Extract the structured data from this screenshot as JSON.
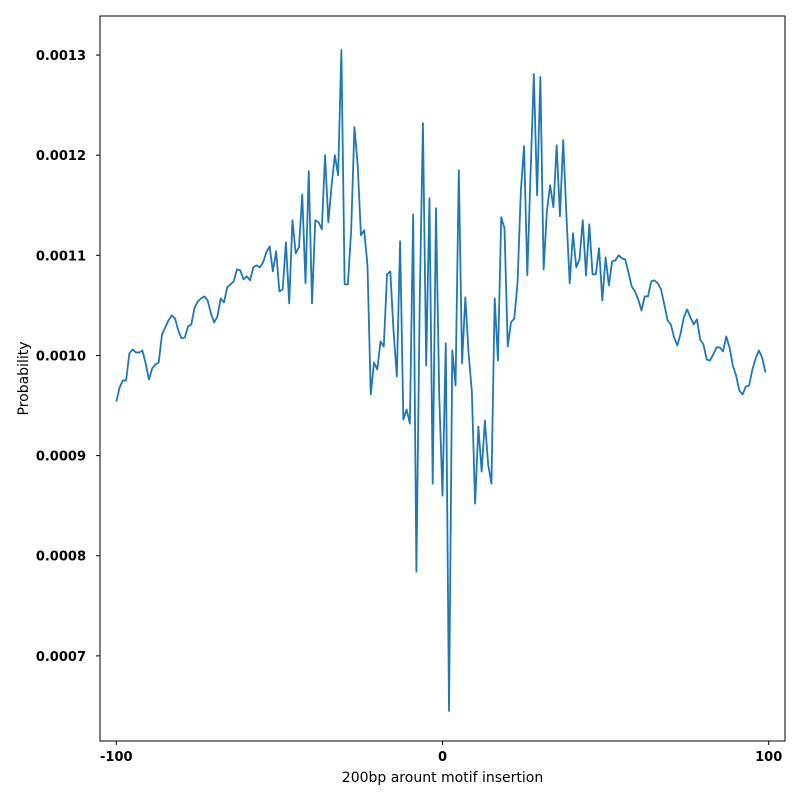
{
  "chart_data": {
    "type": "line",
    "title": "",
    "xlabel": "200bp arount motif insertion",
    "ylabel": "Probability",
    "xlim": [
      -105,
      105
    ],
    "ylim": [
      0.000615,
      0.001339
    ],
    "xticks": [
      -100,
      0,
      100
    ],
    "xtick_labels": [
      "-100",
      "0",
      "100"
    ],
    "yticks": [
      0.0007,
      0.0008,
      0.0009,
      0.001,
      0.0011,
      0.0012,
      0.0013
    ],
    "ytick_labels": [
      "0.0007",
      "0.0008",
      "0.0009",
      "0.0010",
      "0.0011",
      "0.0012",
      "0.0013"
    ],
    "grid": false,
    "line_color": "#1f77b4",
    "series": [
      {
        "x_start": -100,
        "x_step": 1,
        "values": [
          0.000954,
          0.000968,
          0.000975,
          0.000975,
          0.001002,
          0.001006,
          0.001003,
          0.001003,
          0.001005,
          0.000992,
          0.000976,
          0.000987,
          0.000991,
          0.000993,
          0.001021,
          0.001028,
          0.001035,
          0.00104,
          0.001037,
          0.001025,
          0.001017,
          0.001018,
          0.001029,
          0.001031,
          0.001048,
          0.001054,
          0.001057,
          0.001059,
          0.001055,
          0.001042,
          0.001033,
          0.001039,
          0.001057,
          0.001053,
          0.001068,
          0.001071,
          0.001074,
          0.001086,
          0.001085,
          0.001076,
          0.001079,
          0.001075,
          0.001088,
          0.00109,
          0.001088,
          0.001093,
          0.001103,
          0.001109,
          0.001084,
          0.001104,
          0.001064,
          0.001066,
          0.001113,
          0.001052,
          0.001135,
          0.001102,
          0.001108,
          0.001161,
          0.001072,
          0.001184,
          0.001052,
          0.001135,
          0.001133,
          0.001126,
          0.0012,
          0.001133,
          0.00117,
          0.0012,
          0.00118,
          0.001305,
          0.001071,
          0.001071,
          0.001125,
          0.001228,
          0.00119,
          0.00112,
          0.001125,
          0.00109,
          0.000961,
          0.000993,
          0.000986,
          0.001014,
          0.001009,
          0.001081,
          0.001084,
          0.001024,
          0.000979,
          0.001114,
          0.000936,
          0.000946,
          0.000932,
          0.001141,
          0.000784,
          0.00105,
          0.001232,
          0.00099,
          0.001157,
          0.000872,
          0.001147,
          0.00096,
          0.00086,
          0.001012,
          0.000645,
          0.001005,
          0.00097,
          0.001185,
          0.000992,
          0.001058,
          0.001002,
          0.000964,
          0.000852,
          0.000929,
          0.000884,
          0.000935,
          0.000891,
          0.000872,
          0.001057,
          0.000995,
          0.001138,
          0.001127,
          0.001009,
          0.001033,
          0.001037,
          0.001072,
          0.001163,
          0.001209,
          0.00108,
          0.001182,
          0.001281,
          0.00116,
          0.001278,
          0.001086,
          0.001144,
          0.00117,
          0.001148,
          0.00121,
          0.001139,
          0.001215,
          0.001139,
          0.001072,
          0.001122,
          0.001088,
          0.001096,
          0.001135,
          0.00108,
          0.001131,
          0.001081,
          0.001081,
          0.001107,
          0.001055,
          0.001098,
          0.00107,
          0.001094,
          0.001095,
          0.0011,
          0.001097,
          0.001096,
          0.001083,
          0.001069,
          0.001064,
          0.001056,
          0.001045,
          0.001059,
          0.001059,
          0.001074,
          0.001075,
          0.001072,
          0.001066,
          0.001051,
          0.001035,
          0.001031,
          0.001018,
          0.00101,
          0.001022,
          0.001038,
          0.001046,
          0.001038,
          0.001031,
          0.001036,
          0.001016,
          0.001011,
          0.000996,
          0.000995,
          0.001001,
          0.001008,
          0.001008,
          0.001004,
          0.001019,
          0.001008,
          0.00099,
          0.00098,
          0.000965,
          0.000961,
          0.000969,
          0.00097,
          0.000986,
          0.000997,
          0.001005,
          0.000998,
          0.000983
        ]
      }
    ]
  }
}
